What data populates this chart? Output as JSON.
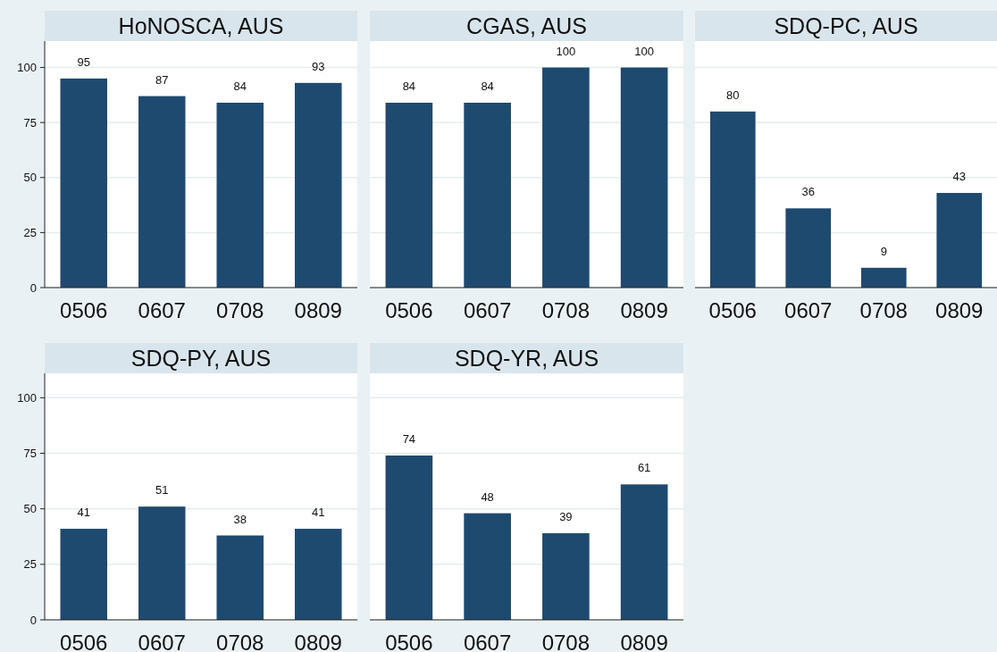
{
  "chart_data": [
    {
      "type": "bar",
      "title": "HoNOSCA, AUS",
      "categories": [
        "0506",
        "0607",
        "0708",
        "0809"
      ],
      "values": [
        95,
        87,
        84,
        93
      ],
      "color": "#1f4a70",
      "ylim": [
        0,
        112
      ],
      "yticks": [
        0,
        25,
        50,
        75,
        100
      ],
      "grid": "y",
      "data_labels": true
    },
    {
      "type": "bar",
      "title": "CGAS, AUS",
      "categories": [
        "0506",
        "0607",
        "0708",
        "0809"
      ],
      "values": [
        84,
        84,
        100,
        100
      ],
      "color": "#1f4a70",
      "ylim": [
        0,
        112
      ],
      "yticks": [
        0,
        25,
        50,
        75,
        100
      ],
      "grid": "y",
      "data_labels": true,
      "tick_labels": "x"
    },
    {
      "type": "bar",
      "title": "SDQ-PC, AUS",
      "categories": [
        "0506",
        "0607",
        "0708",
        "0809"
      ],
      "values": [
        80,
        36,
        9,
        43
      ],
      "color": "#1f4a70",
      "ylim": [
        0,
        112
      ],
      "yticks": [
        0,
        25,
        50,
        75,
        100
      ],
      "grid": "y",
      "data_labels": true,
      "tick_labels": "x"
    },
    {
      "type": "bar",
      "title": "SDQ-PY, AUS",
      "categories": [
        "0506",
        "0607",
        "0708",
        "0809"
      ],
      "values": [
        41,
        51,
        38,
        41
      ],
      "color": "#1f4a70",
      "ylim": [
        0,
        111
      ],
      "yticks": [
        0,
        25,
        50,
        75,
        100
      ],
      "grid": "y",
      "data_labels": true
    },
    {
      "type": "bar",
      "title": "SDQ-YR, AUS",
      "categories": [
        "0506",
        "0607",
        "0708",
        "0809"
      ],
      "values": [
        74,
        48,
        39,
        61
      ],
      "color": "#1f4a70",
      "ylim": [
        0,
        111
      ],
      "yticks": [
        0,
        25,
        50,
        75,
        100
      ],
      "grid": "y",
      "data_labels": true,
      "tick_labels": "x"
    }
  ]
}
